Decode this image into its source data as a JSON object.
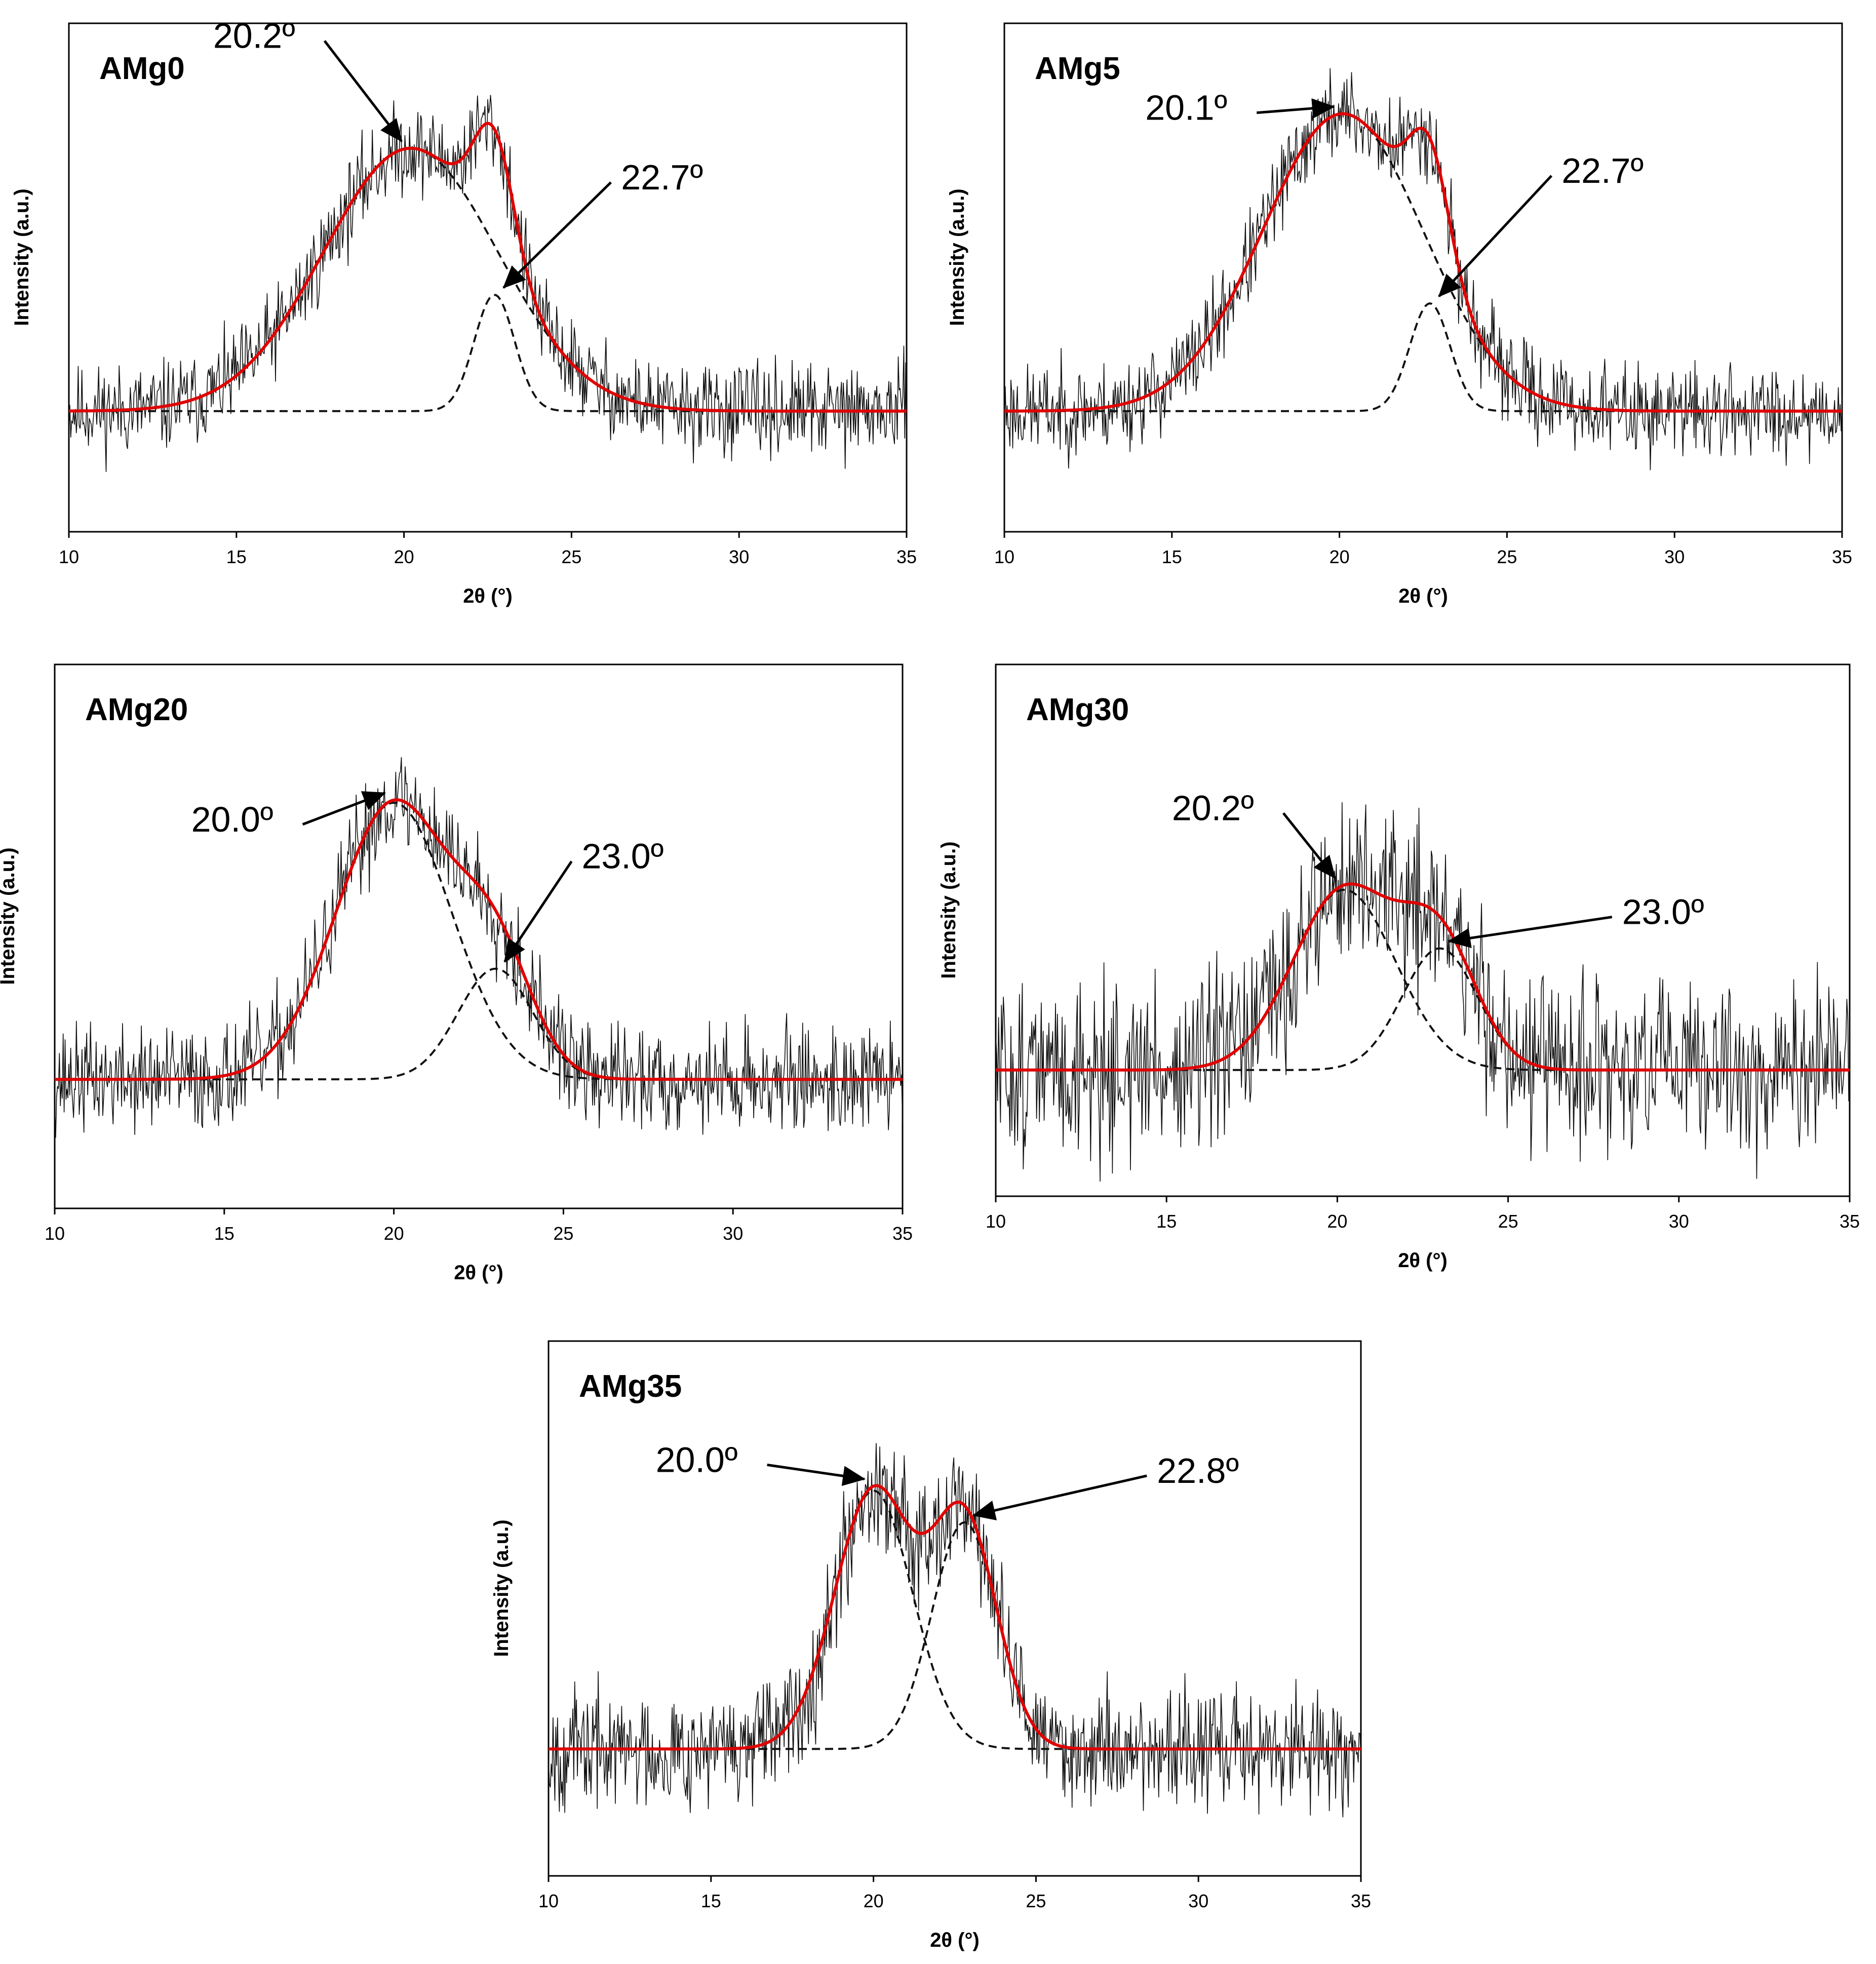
{
  "colors": {
    "raw": "#111111",
    "fit": "#e00000",
    "component": "#111111",
    "axis": "#000000"
  },
  "chart_data": [
    {
      "type": "line",
      "title": "AMg0",
      "xlabel": "2θ (°)",
      "ylabel": "Intensity (a.u.)",
      "xlim": [
        10,
        35
      ],
      "xticks": [
        10,
        15,
        20,
        25,
        30,
        35
      ],
      "grid": false,
      "noise": 0.065,
      "seed": 11,
      "components": [
        {
          "center": 20.2,
          "amplitude": 0.61,
          "sigma": 2.6
        },
        {
          "center": 22.7,
          "amplitude": 0.27,
          "sigma": 0.6
        }
      ],
      "annotations": [
        {
          "label": "20.2º",
          "peak_x": 20.2
        },
        {
          "label": "22.7º",
          "peak_x": 22.7
        }
      ]
    },
    {
      "type": "line",
      "title": "AMg5",
      "xlabel": "2θ (°)",
      "ylabel": "Intensity (a.u.)",
      "xlim": [
        10,
        35
      ],
      "xticks": [
        10,
        15,
        20,
        25,
        30,
        35
      ],
      "grid": false,
      "noise": 0.065,
      "seed": 23,
      "components": [
        {
          "center": 20.1,
          "amplitude": 0.69,
          "sigma": 2.4
        },
        {
          "center": 22.7,
          "amplitude": 0.25,
          "sigma": 0.6
        }
      ],
      "annotations": [
        {
          "label": "20.1º",
          "peak_x": 20.1
        },
        {
          "label": "22.7º",
          "peak_x": 22.7
        }
      ]
    },
    {
      "type": "line",
      "title": "AMg20",
      "xlabel": "2θ (°)",
      "ylabel": "Intensity (a.u.)",
      "xlim": [
        10,
        35
      ],
      "xticks": [
        10,
        15,
        20,
        25,
        30,
        35
      ],
      "grid": false,
      "noise": 0.07,
      "seed": 37,
      "components": [
        {
          "center": 20.0,
          "amplitude": 0.6,
          "sigma": 1.7
        },
        {
          "center": 23.0,
          "amplitude": 0.24,
          "sigma": 1.1
        }
      ],
      "annotations": [
        {
          "label": "20.0º",
          "peak_x": 20.0
        },
        {
          "label": "23.0º",
          "peak_x": 23.0
        }
      ]
    },
    {
      "type": "line",
      "title": "AMg30",
      "xlabel": "2θ (°)",
      "ylabel": "Intensity (a.u.)",
      "xlim": [
        10,
        35
      ],
      "xticks": [
        10,
        15,
        20,
        25,
        30,
        35
      ],
      "grid": false,
      "noise": 0.12,
      "seed": 51,
      "components": [
        {
          "center": 20.2,
          "amplitude": 0.4,
          "sigma": 1.5
        },
        {
          "center": 23.0,
          "amplitude": 0.27,
          "sigma": 1.1
        }
      ],
      "annotations": [
        {
          "label": "20.2º",
          "peak_x": 20.2
        },
        {
          "label": "23.0º",
          "peak_x": 23.0
        }
      ]
    },
    {
      "type": "line",
      "title": "AMg35",
      "xlabel": "2θ (°)",
      "ylabel": "Intensity (a.u.)",
      "xlim": [
        10,
        35
      ],
      "xticks": [
        10,
        15,
        20,
        25,
        30,
        35
      ],
      "grid": false,
      "noise": 0.08,
      "seed": 67,
      "components": [
        {
          "center": 20.0,
          "amplitude": 0.57,
          "sigma": 1.2
        },
        {
          "center": 22.8,
          "amplitude": 0.5,
          "sigma": 1.0
        }
      ],
      "annotations": [
        {
          "label": "20.0º",
          "peak_x": 20.0
        },
        {
          "label": "22.8º",
          "peak_x": 22.8
        }
      ]
    }
  ]
}
